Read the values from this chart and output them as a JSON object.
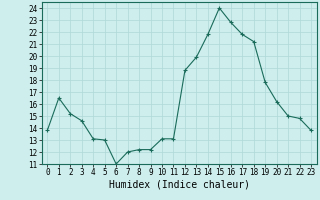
{
  "x": [
    0,
    1,
    2,
    3,
    4,
    5,
    6,
    7,
    8,
    9,
    10,
    11,
    12,
    13,
    14,
    15,
    16,
    17,
    18,
    19,
    20,
    21,
    22,
    23
  ],
  "y": [
    13.8,
    16.5,
    15.2,
    14.6,
    13.1,
    13.0,
    11.0,
    12.0,
    12.2,
    12.2,
    13.1,
    13.1,
    18.8,
    19.9,
    21.8,
    24.0,
    22.8,
    21.8,
    21.2,
    17.8,
    16.2,
    15.0,
    14.8,
    13.8
  ],
  "line_color": "#1a6b5a",
  "marker": "+",
  "marker_size": 3,
  "marker_linewidth": 0.8,
  "xlabel": "Humidex (Indice chaleur)",
  "xlabel_fontsize": 7,
  "xlim": [
    -0.5,
    23.5
  ],
  "ylim": [
    11,
    24.5
  ],
  "ytick_min": 11,
  "ytick_max": 24,
  "ytick_step": 1,
  "bg_color": "#cdeeed",
  "grid_color": "#aed8d6",
  "tick_fontsize": 5.5,
  "line_width": 0.8
}
